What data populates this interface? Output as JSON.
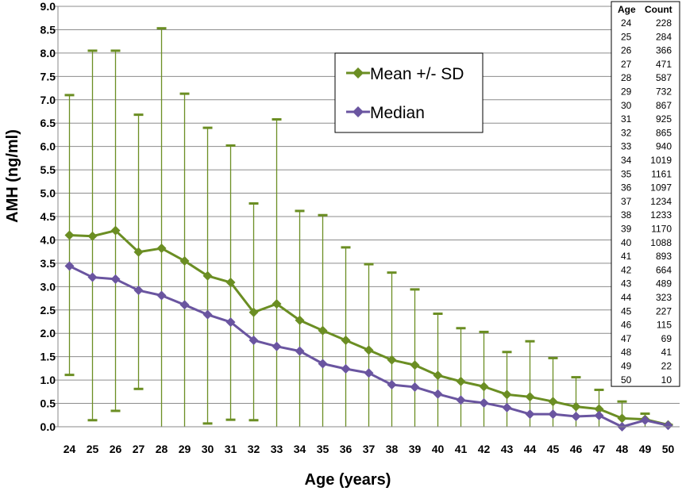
{
  "chart_data": {
    "type": "line",
    "xlabel": "Age (years)",
    "ylabel": "AMH (ng/ml)",
    "ylim": [
      0,
      9
    ],
    "ytick_step": 0.5,
    "yticks": [
      "0.0",
      "0.5",
      "1.0",
      "1.5",
      "2.0",
      "2.5",
      "3.0",
      "3.5",
      "4.0",
      "4.5",
      "5.0",
      "5.5",
      "6.0",
      "6.5",
      "7.0",
      "7.5",
      "8.0",
      "8.5",
      "9.0"
    ],
    "grid": "horizontal",
    "legend_position": "top-center",
    "x": [
      "24",
      "25",
      "26",
      "27",
      "28",
      "29",
      "30",
      "31",
      "32",
      "33",
      "34",
      "35",
      "36",
      "37",
      "38",
      "39",
      "40",
      "41",
      "42",
      "43",
      "44",
      "45",
      "46",
      "47",
      "48",
      "49",
      "50"
    ],
    "series": [
      {
        "name": "Mean +/- SD",
        "color": "#6b8e23",
        "marker": "diamond",
        "values": [
          4.1,
          4.08,
          4.2,
          3.74,
          3.82,
          3.55,
          3.23,
          3.09,
          2.45,
          2.63,
          2.28,
          2.06,
          1.85,
          1.64,
          1.43,
          1.32,
          1.1,
          0.97,
          0.86,
          0.69,
          0.64,
          0.54,
          0.43,
          0.38,
          0.18,
          0.16,
          0.04
        ],
        "error_upper": [
          7.1,
          8.05,
          8.05,
          6.68,
          8.53,
          7.13,
          6.4,
          6.02,
          4.78,
          6.58,
          4.62,
          4.53,
          3.84,
          3.48,
          3.3,
          2.94,
          2.42,
          2.11,
          2.03,
          1.6,
          1.83,
          1.47,
          1.06,
          0.79,
          0.54,
          0.28,
          0.04
        ],
        "error_lower": [
          1.11,
          0.14,
          0.34,
          0.81,
          0.0,
          0.0,
          0.07,
          0.15,
          0.14,
          0.0,
          0.0,
          0.0,
          0.0,
          0.0,
          0.0,
          0.0,
          0.0,
          0.0,
          0.0,
          0.0,
          0.0,
          0.0,
          0.0,
          0.0,
          0.0,
          0.0,
          0.0
        ]
      },
      {
        "name": "Median",
        "color": "#6a55a0",
        "marker": "diamond",
        "values": [
          3.44,
          3.2,
          3.16,
          2.92,
          2.81,
          2.61,
          2.4,
          2.24,
          1.85,
          1.72,
          1.62,
          1.35,
          1.24,
          1.15,
          0.9,
          0.85,
          0.7,
          0.57,
          0.51,
          0.41,
          0.27,
          0.27,
          0.22,
          0.24,
          0.0,
          0.14,
          0.03
        ]
      }
    ],
    "table": {
      "headers": [
        "Age",
        "Count"
      ],
      "rows": [
        [
          "24",
          "228"
        ],
        [
          "25",
          "284"
        ],
        [
          "26",
          "366"
        ],
        [
          "27",
          "471"
        ],
        [
          "28",
          "587"
        ],
        [
          "29",
          "732"
        ],
        [
          "30",
          "867"
        ],
        [
          "31",
          "925"
        ],
        [
          "32",
          "865"
        ],
        [
          "33",
          "940"
        ],
        [
          "34",
          "1019"
        ],
        [
          "35",
          "1161"
        ],
        [
          "36",
          "1097"
        ],
        [
          "37",
          "1234"
        ],
        [
          "38",
          "1233"
        ],
        [
          "39",
          "1170"
        ],
        [
          "40",
          "1088"
        ],
        [
          "41",
          "893"
        ],
        [
          "42",
          "664"
        ],
        [
          "43",
          "489"
        ],
        [
          "44",
          "323"
        ],
        [
          "45",
          "227"
        ],
        [
          "46",
          "115"
        ],
        [
          "47",
          "69"
        ],
        [
          "48",
          "41"
        ],
        [
          "49",
          "22"
        ],
        [
          "50",
          "10"
        ]
      ]
    }
  }
}
